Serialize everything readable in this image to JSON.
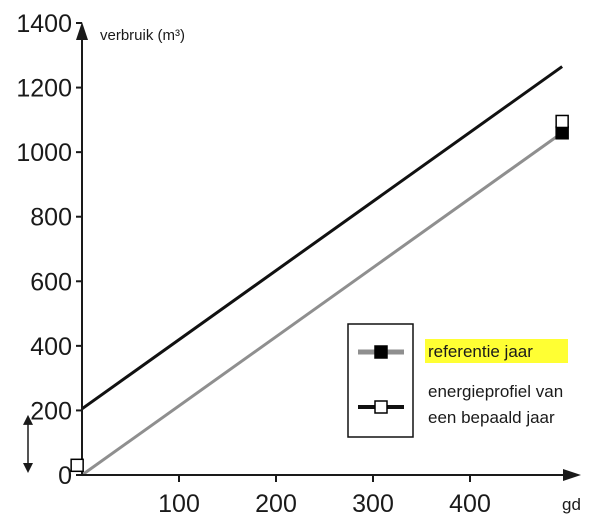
{
  "chart_data": {
    "type": "line",
    "ylabel": "verbruik (m³)",
    "xlabel": "gd",
    "xlim": [
      0,
      500
    ],
    "ylim": [
      0,
      1400
    ],
    "x_ticks": [
      "100",
      "200",
      "300",
      "400"
    ],
    "y_ticks": [
      "0",
      "200",
      "400",
      "600",
      "800",
      "1000",
      "1200",
      "1400"
    ],
    "series": [
      {
        "name": "referentie jaar",
        "color": "#8f8f8f",
        "points": [
          [
            0,
            0
          ],
          [
            495,
            1060
          ]
        ],
        "markers": [
          {
            "x": 495,
            "y": 1060,
            "style": "filled-square"
          }
        ]
      },
      {
        "name": "energieprofiel van een bepaald jaar",
        "color": "#111111",
        "points": [
          [
            0,
            205
          ],
          [
            495,
            1265
          ]
        ],
        "markers": [
          {
            "x": 495,
            "y": 1095,
            "style": "open-square"
          },
          {
            "x": -5,
            "y": 30,
            "style": "open-square"
          }
        ]
      }
    ],
    "legend": {
      "position": "right",
      "entries": [
        "referentie jaar",
        "energieprofiel van",
        "een bepaald jaar"
      ],
      "highlight_color": "#ffff33"
    },
    "annotations": [
      {
        "type": "double-arrow",
        "direction": "vertical",
        "from_y": 0,
        "to_y": 205
      }
    ]
  }
}
